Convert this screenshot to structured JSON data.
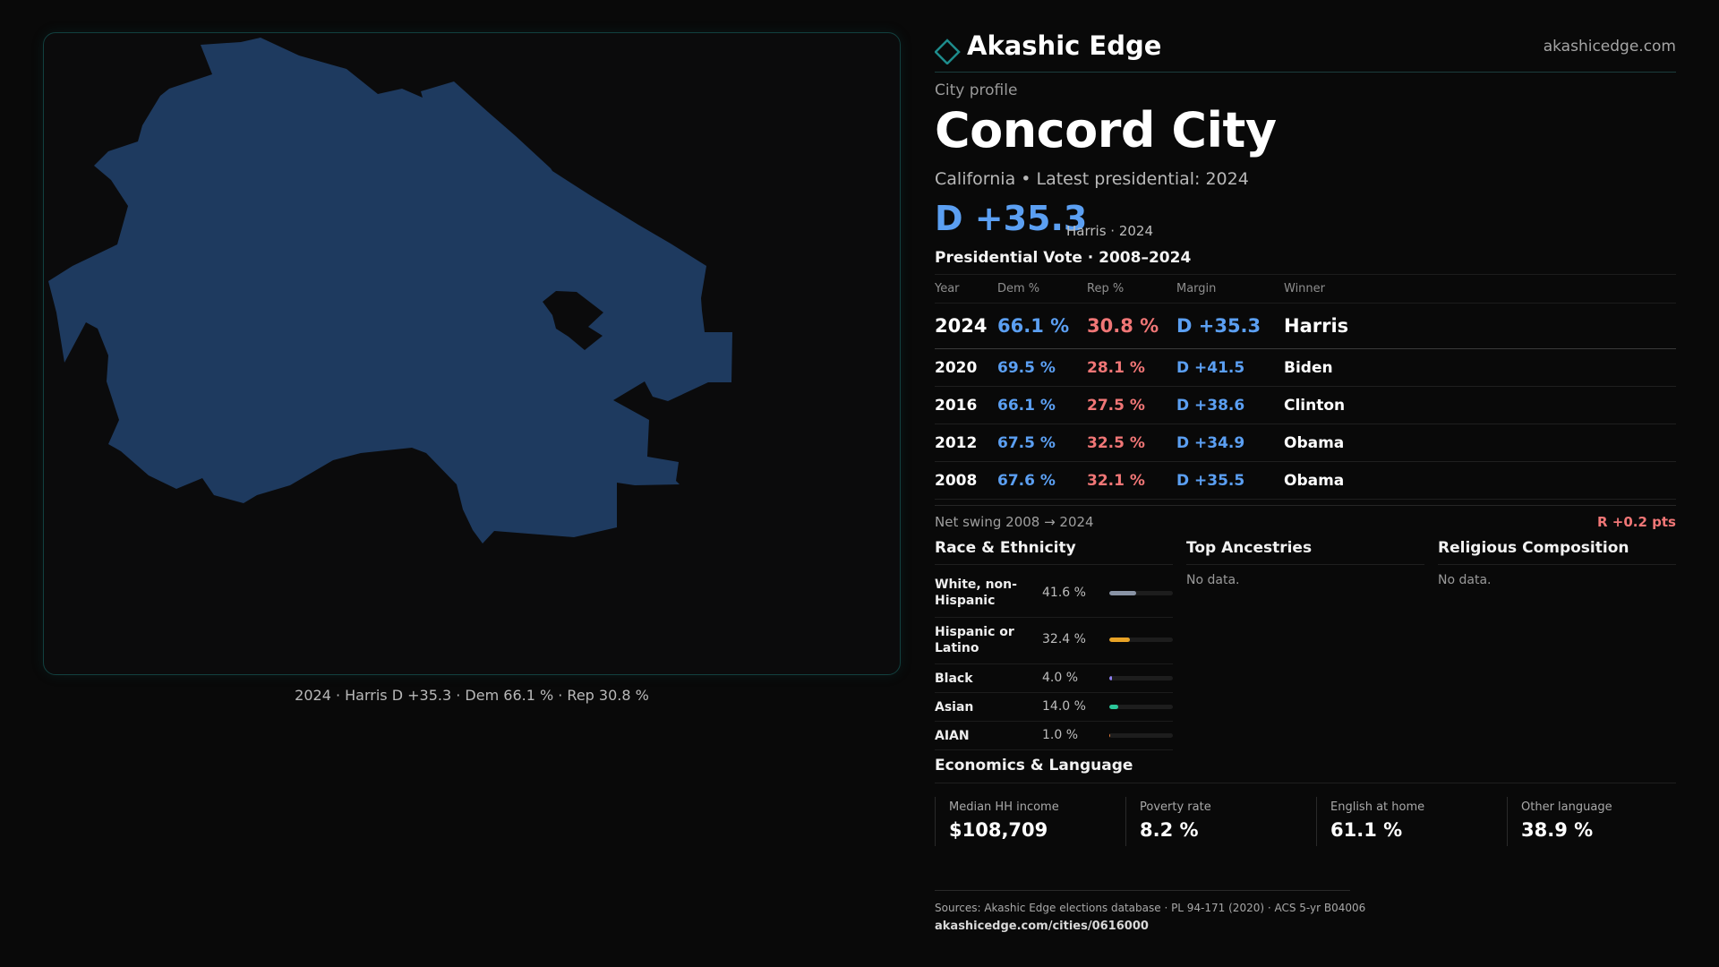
{
  "map": {
    "caption": "2024 · Harris D +35.3 · Dem 66.1 % · Rep 30.8 %",
    "fill_color": "#1e3a5f"
  },
  "brand": {
    "logo_icon": "diamond-icon",
    "name": "Akashic Edge",
    "url": "akashicedge.com"
  },
  "profile": {
    "eyebrow": "City profile",
    "title": "Concord City",
    "subtitle": "California • Latest presidential: 2024",
    "margin_headline": "D +35.3",
    "margin_note": "Harris · 2024"
  },
  "presidential": {
    "heading": "Presidential Vote · 2008–2024",
    "columns": [
      "Year",
      "Dem %",
      "Rep %",
      "Margin",
      "Winner"
    ],
    "rows": [
      {
        "year": "2024",
        "dem": "66.1 %",
        "rep": "30.8 %",
        "margin": "D +35.3",
        "winner": "Harris"
      },
      {
        "year": "2020",
        "dem": "69.5 %",
        "rep": "28.1 %",
        "margin": "D +41.5",
        "winner": "Biden"
      },
      {
        "year": "2016",
        "dem": "66.1 %",
        "rep": "27.5 %",
        "margin": "D +38.6",
        "winner": "Clinton"
      },
      {
        "year": "2012",
        "dem": "67.5 %",
        "rep": "32.5 %",
        "margin": "D +34.9",
        "winner": "Obama"
      },
      {
        "year": "2008",
        "dem": "67.6 %",
        "rep": "32.1 %",
        "margin": "D +35.5",
        "winner": "Obama"
      }
    ],
    "swing_label": "Net swing 2008 → 2024",
    "swing_value": "R +0.2 pts"
  },
  "race": {
    "heading": "Race & Ethnicity",
    "rows": [
      {
        "label": "White, non-Hispanic",
        "pct": "41.6 %",
        "share": 0.416,
        "color": "#8a94a6"
      },
      {
        "label": "Hispanic or Latino",
        "pct": "32.4 %",
        "share": 0.324,
        "color": "#e8a326"
      },
      {
        "label": "Black",
        "pct": "4.0 %",
        "share": 0.04,
        "color": "#8e7ff0"
      },
      {
        "label": "Asian",
        "pct": "14.0 %",
        "share": 0.14,
        "color": "#2bc79a"
      },
      {
        "label": "AIAN",
        "pct": "1.0 %",
        "share": 0.01,
        "color": "#e07a3a"
      }
    ]
  },
  "ancestries": {
    "heading": "Top Ancestries",
    "empty_text": "No data."
  },
  "religion": {
    "heading": "Religious Composition",
    "empty_text": "No data."
  },
  "economics": {
    "heading": "Economics & Language",
    "stats": [
      {
        "label": "Median HH income",
        "value": "$108,709"
      },
      {
        "label": "Poverty rate",
        "value": "8.2 %"
      },
      {
        "label": "English at home",
        "value": "61.1 %"
      },
      {
        "label": "Other language",
        "value": "38.9 %"
      }
    ]
  },
  "sources": {
    "line": "Sources: Akashic Edge elections database · PL 94-171 (2020) · ACS 5-yr B04006",
    "url": "akashicedge.com/cities/0616000"
  }
}
